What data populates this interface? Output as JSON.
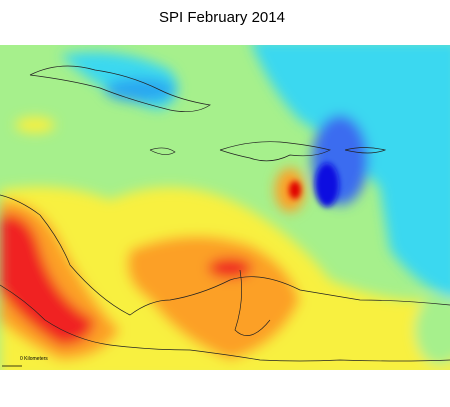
{
  "title": "SPI February 2014",
  "scale_label": "0 Kilometers"
}
